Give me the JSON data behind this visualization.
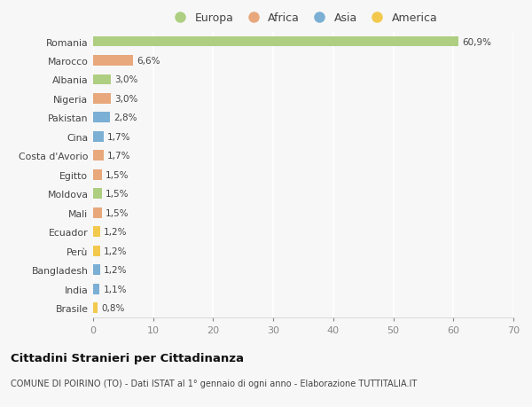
{
  "countries": [
    "Romania",
    "Marocco",
    "Albania",
    "Nigeria",
    "Pakistan",
    "Cina",
    "Costa d'Avorio",
    "Egitto",
    "Moldova",
    "Mali",
    "Ecuador",
    "Perù",
    "Bangladesh",
    "India",
    "Brasile"
  ],
  "values": [
    60.9,
    6.6,
    3.0,
    3.0,
    2.8,
    1.7,
    1.7,
    1.5,
    1.5,
    1.5,
    1.2,
    1.2,
    1.2,
    1.1,
    0.8
  ],
  "labels": [
    "60,9%",
    "6,6%",
    "3,0%",
    "3,0%",
    "2,8%",
    "1,7%",
    "1,7%",
    "1,5%",
    "1,5%",
    "1,5%",
    "1,2%",
    "1,2%",
    "1,2%",
    "1,1%",
    "0,8%"
  ],
  "continents": [
    "Europa",
    "Africa",
    "Europa",
    "Africa",
    "Asia",
    "Asia",
    "Africa",
    "Africa",
    "Europa",
    "Africa",
    "America",
    "America",
    "Asia",
    "Asia",
    "America"
  ],
  "colors": {
    "Europa": "#aecf82",
    "Africa": "#e8a87c",
    "Asia": "#7bafd4",
    "America": "#f2c94c"
  },
  "xlim": [
    0,
    70
  ],
  "xticks": [
    0,
    10,
    20,
    30,
    40,
    50,
    60,
    70
  ],
  "bg_color": "#f7f7f7",
  "grid_color": "#ffffff",
  "title": "Cittadini Stranieri per Cittadinanza",
  "subtitle": "COMUNE DI POIRINO (TO) - Dati ISTAT al 1° gennaio di ogni anno - Elaborazione TUTTITALIA.IT",
  "bar_height": 0.55,
  "legend_order": [
    "Europa",
    "Africa",
    "Asia",
    "America"
  ]
}
